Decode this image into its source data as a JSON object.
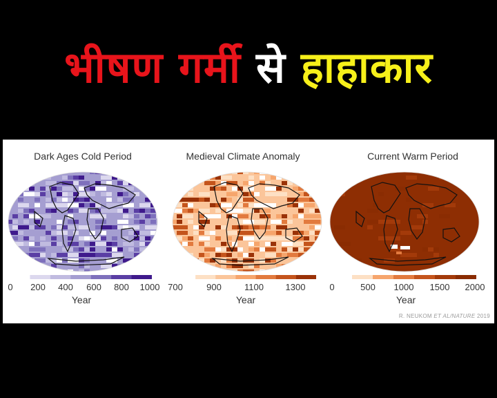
{
  "headline": {
    "part1": "भीषण गर्मी",
    "part2": "से",
    "part3": "हाहाकार"
  },
  "maps": [
    {
      "title": "Dark Ages Cold Period",
      "xlabel": "Year",
      "ticks": [
        "0",
        "200",
        "400",
        "600",
        "800",
        "1000"
      ],
      "colors": [
        "#ffffff",
        "#dcd8ee",
        "#c0bbe0",
        "#a59ed1",
        "#7e70bc",
        "#5a3ea4",
        "#3f1a8c"
      ],
      "dominant_color": "#a59ed1"
    },
    {
      "title": "Medieval Climate Anomaly",
      "xlabel": "Year",
      "ticks": [
        "700",
        "900",
        "1100",
        "1300"
      ],
      "colors": [
        "#ffffff",
        "#fde0c4",
        "#fbc59a",
        "#f6a56c",
        "#e27a3e",
        "#c4541c",
        "#9a3208"
      ],
      "dominant_color": "#fbc59a"
    },
    {
      "title": "Current Warm Period",
      "xlabel": "Year",
      "ticks": [
        "0",
        "500",
        "1000",
        "1500",
        "2000"
      ],
      "colors": [
        "#ffffff",
        "#fde0c4",
        "#f6a56c",
        "#e27a3e",
        "#c4541c",
        "#a33a0a",
        "#8a2c02"
      ],
      "dominant_color": "#8e2e03"
    }
  ],
  "credit": {
    "prefix": "R. NEUKOM ",
    "italic": "ET AL/NATURE",
    "suffix": " 2019"
  }
}
